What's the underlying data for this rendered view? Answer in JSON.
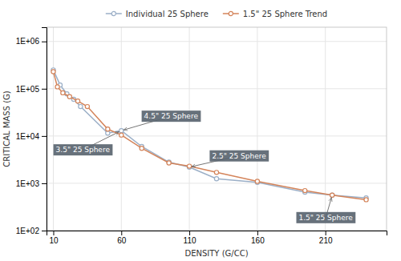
{
  "chart_data": {
    "type": "line",
    "xlabel": "DENSITY (G/CC)",
    "ylabel": "CRITICAL MASS (G)",
    "log": "y",
    "grid": true,
    "legend": "top",
    "xlim": [
      5,
      255
    ],
    "xticks": [
      10,
      60,
      110,
      160,
      210
    ],
    "ylim": [
      100,
      2000000
    ],
    "yticks": [
      {
        "value": 100,
        "label": "1E+02"
      },
      {
        "value": 1000,
        "label": "1E+03"
      },
      {
        "value": 10000,
        "label": "1E+04"
      },
      {
        "value": 100000,
        "label": "1E+05"
      },
      {
        "value": 1000000,
        "label": "1E+06"
      }
    ],
    "series": [
      {
        "name": "Individual 25 Sphere",
        "color": "#9bafc7",
        "marker": "circle",
        "x": [
          10,
          15,
          20,
          25,
          30,
          50,
          60,
          75,
          95,
          110,
          130,
          160,
          195,
          215,
          240
        ],
        "values": [
          250000,
          120000,
          78000,
          60000,
          42000,
          11500,
          13000,
          6000,
          2800,
          2200,
          1250,
          1050,
          650,
          560,
          490
        ]
      },
      {
        "name": "1.5\" 25 Sphere Trend",
        "color": "#d4845a",
        "marker": "circle",
        "x": [
          10,
          13,
          17,
          22,
          28,
          35,
          50,
          60,
          75,
          95,
          110,
          130,
          160,
          195,
          215,
          240
        ],
        "values": [
          230000,
          110000,
          82000,
          68000,
          55000,
          42000,
          14000,
          10500,
          5500,
          2700,
          2300,
          1700,
          1100,
          700,
          560,
          450
        ]
      }
    ],
    "annotations": [
      {
        "text": "3.5\" 25 Sphere",
        "x": 60,
        "y": 13000
      },
      {
        "text": "4.5\" 25 Sphere",
        "x": 60,
        "y": 13000
      },
      {
        "text": "2.5\" 25 Sphere",
        "x": 110,
        "y": 2200
      },
      {
        "text": "1.5\" 25 Sphere",
        "x": 215,
        "y": 560
      }
    ]
  }
}
